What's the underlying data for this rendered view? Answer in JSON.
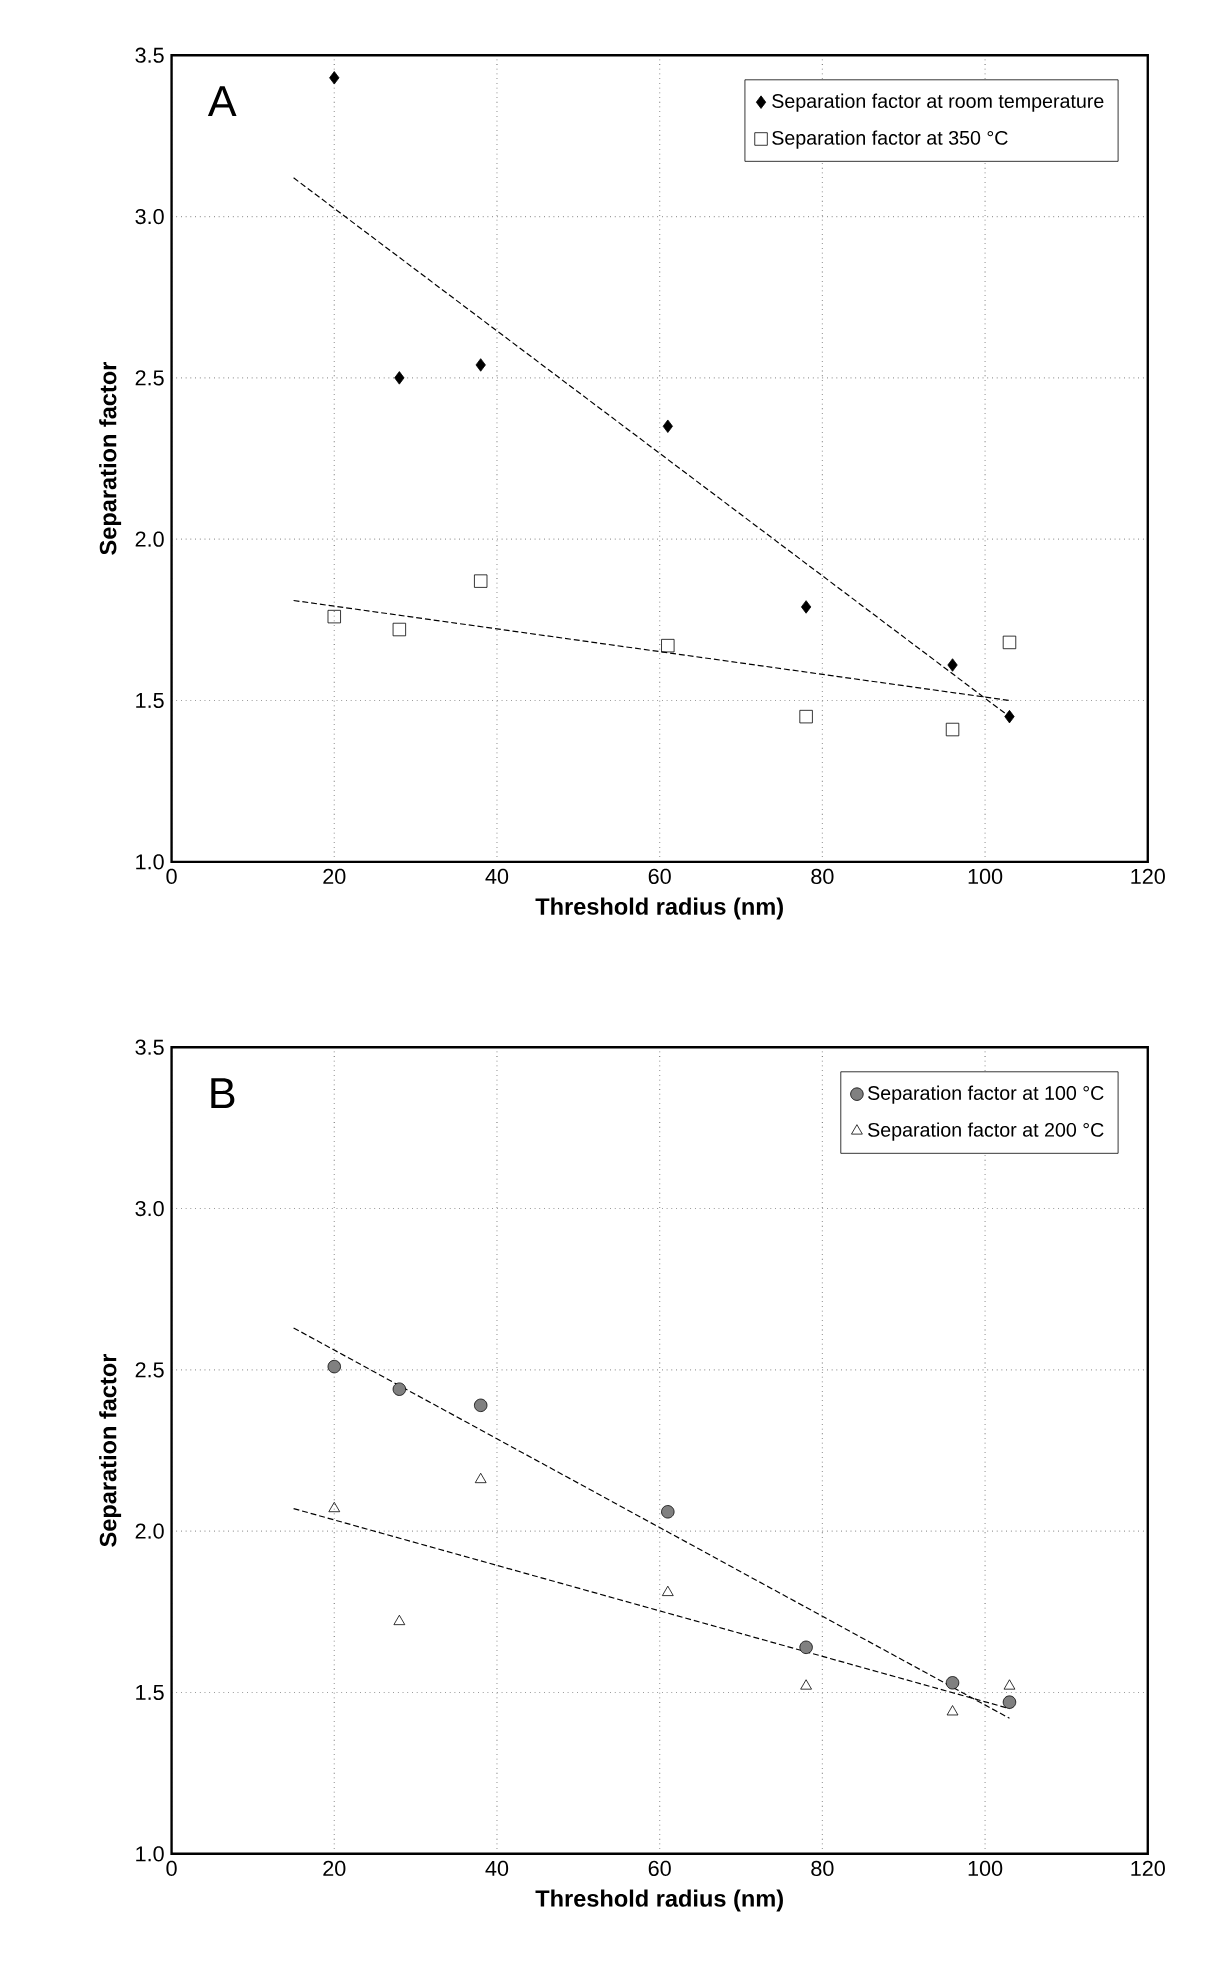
{
  "chart_data": [
    {
      "type": "scatter",
      "xlabel": "Threshold radius (nm)",
      "ylabel": "Separation factor",
      "annotations": [
        "A"
      ],
      "xlim": [
        0,
        120
      ],
      "ylim": [
        1,
        3.5
      ],
      "xticks": [
        0,
        20,
        40,
        60,
        80,
        100,
        120
      ],
      "yticks": [
        {
          "value": 1,
          "label": "1.0"
        },
        {
          "value": 1.5,
          "label": "1.5"
        },
        {
          "value": 2,
          "label": "2.0"
        },
        {
          "value": 2.5,
          "label": "2.5"
        },
        {
          "value": 3,
          "label": "3.0"
        },
        {
          "value": 3.5,
          "label": "3.5"
        }
      ],
      "grid": true,
      "legend": "top right",
      "series": [
        {
          "name": "Separation factor at room temperature",
          "marker": "diamond",
          "color": "#000000",
          "x": [
            20,
            28,
            38,
            61,
            78,
            96,
            103
          ],
          "values": [
            3.43,
            2.5,
            2.54,
            2.35,
            1.79,
            1.61,
            1.45
          ]
        },
        {
          "name": "Separation factor at 350 °C",
          "marker": "square",
          "color": "#000000",
          "x": [
            20,
            28,
            38,
            61,
            78,
            96,
            103
          ],
          "values": [
            1.76,
            1.72,
            1.87,
            1.67,
            1.45,
            1.41,
            1.68
          ]
        },
        {
          "type": "line",
          "line_style": "dashed",
          "color": "#000000",
          "x": [
            15,
            103
          ],
          "values": [
            3.12,
            1.45
          ]
        },
        {
          "type": "line",
          "line_style": "dashed",
          "color": "#000000",
          "x": [
            15,
            103
          ],
          "values": [
            1.81,
            1.5
          ]
        }
      ]
    },
    {
      "type": "scatter",
      "xlabel": "Threshold radius (nm)",
      "ylabel": "Separation factor",
      "annotations": [
        "B"
      ],
      "xlim": [
        0,
        120
      ],
      "ylim": [
        1,
        3.5
      ],
      "xticks": [
        0,
        20,
        40,
        60,
        80,
        100,
        120
      ],
      "yticks": [
        {
          "value": 1,
          "label": "1.0"
        },
        {
          "value": 1.5,
          "label": "1.5"
        },
        {
          "value": 2,
          "label": "2.0"
        },
        {
          "value": 2.5,
          "label": "2.5"
        },
        {
          "value": 3,
          "label": "3.0"
        },
        {
          "value": 3.5,
          "label": "3.5"
        }
      ],
      "grid": true,
      "legend": "top right",
      "series": [
        {
          "name": "Separation factor at 100 °C",
          "marker": "circle",
          "color": "#808080",
          "x": [
            20,
            28,
            38,
            61,
            78,
            96,
            103
          ],
          "values": [
            2.51,
            2.44,
            2.39,
            2.06,
            1.64,
            1.53,
            1.47
          ]
        },
        {
          "name": "Separation factor at 200 °C",
          "marker": "triangle",
          "color": "#000000",
          "x": [
            20,
            28,
            38,
            61,
            78,
            96,
            103
          ],
          "values": [
            2.07,
            1.72,
            2.16,
            1.81,
            1.52,
            1.44,
            1.52
          ]
        },
        {
          "type": "line",
          "line_style": "dashed",
          "color": "#000000",
          "x": [
            15,
            103
          ],
          "values": [
            2.63,
            1.42
          ]
        },
        {
          "type": "line",
          "line_style": "dashed",
          "color": "#000000",
          "x": [
            15,
            103
          ],
          "values": [
            2.07,
            1.45
          ]
        }
      ]
    }
  ]
}
